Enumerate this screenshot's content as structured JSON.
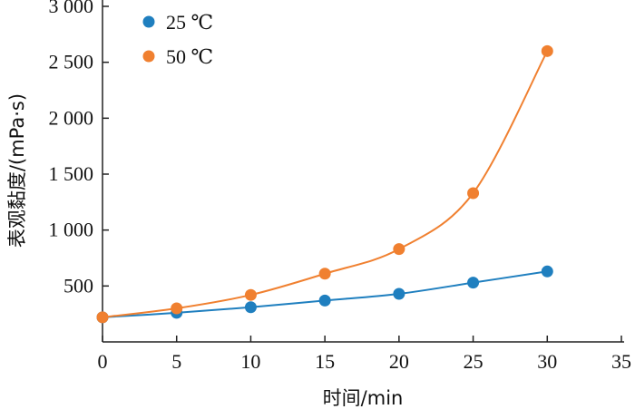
{
  "chart_data": {
    "type": "line",
    "xlabel": "时间/min",
    "ylabel": "表观黏度/(mPa·s)",
    "xlim": [
      0,
      35
    ],
    "ylim": [
      0,
      3000
    ],
    "x_ticks": [
      0,
      5,
      10,
      15,
      20,
      25,
      30,
      35
    ],
    "x_tick_labels": [
      "0",
      "5",
      "10",
      "15",
      "20",
      "25",
      "30",
      "35"
    ],
    "y_ticks": [
      500,
      1000,
      1500,
      2000,
      2500,
      3000
    ],
    "y_tick_labels": [
      "500",
      "1 000",
      "1 500",
      "2 000",
      "2 500",
      "3 000"
    ],
    "grid": false,
    "legend_position": "top-left",
    "series": [
      {
        "name": "25 ℃",
        "color": "#1f7fbf",
        "x": [
          0,
          5,
          10,
          15,
          20,
          25,
          30
        ],
        "values": [
          220,
          260,
          310,
          370,
          430,
          530,
          630
        ]
      },
      {
        "name": "50 ℃",
        "color": "#f08030",
        "x": [
          0,
          5,
          10,
          15,
          20,
          25,
          30
        ],
        "values": [
          220,
          300,
          420,
          610,
          830,
          1330,
          2600
        ]
      }
    ]
  }
}
